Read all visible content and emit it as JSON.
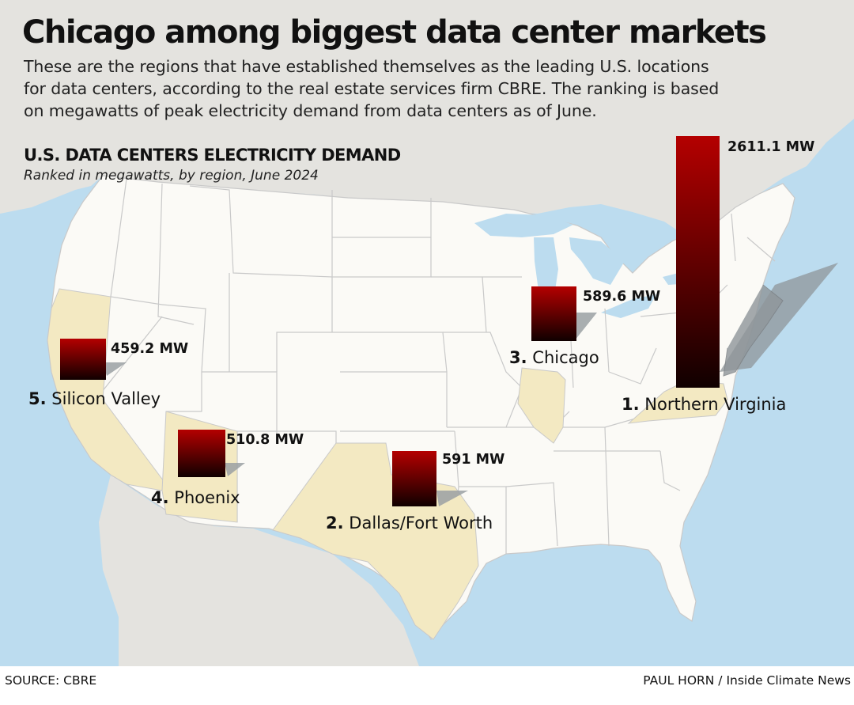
{
  "headline": "Chicago among biggest data center markets",
  "intro": [
    "These are the regions that have established themselves as the leading U.S. locations",
    "for data centers, according to the real estate services firm CBRE. The ranking is based",
    "on megawatts of peak electricity demand from data centers as of June."
  ],
  "section_title": "U.S. DATA CENTERS ELECTRICITY DEMAND",
  "section_subtitle": "Ranked in megawatts, by region, June 2024",
  "colors": {
    "water": "#bcdcef",
    "land_other": "#e4e3df",
    "land_us": "#fbfaf6",
    "highlight": "#f3e9c2",
    "border": "#c9c9c9",
    "bar_top": "#b40000",
    "bar_bottom": "#100000"
  },
  "markers": [
    {
      "rank": "1.",
      "region": "Northern Virginia",
      "value_mw": 2611.1,
      "value_label": "2611.1 MW"
    },
    {
      "rank": "2.",
      "region": "Dallas/Fort Worth",
      "value_mw": 591,
      "value_label": "591 MW"
    },
    {
      "rank": "3.",
      "region": "Chicago",
      "value_mw": 589.6,
      "value_label": "589.6 MW"
    },
    {
      "rank": "4.",
      "region": "Phoenix",
      "value_mw": 510.8,
      "value_label": "510.8 MW"
    },
    {
      "rank": "5.",
      "region": "Silicon Valley",
      "value_mw": 459.2,
      "value_label": "459.2 MW"
    }
  ],
  "source": "SOURCE: CBRE",
  "credit": "PAUL HORN / Inside Climate News"
}
